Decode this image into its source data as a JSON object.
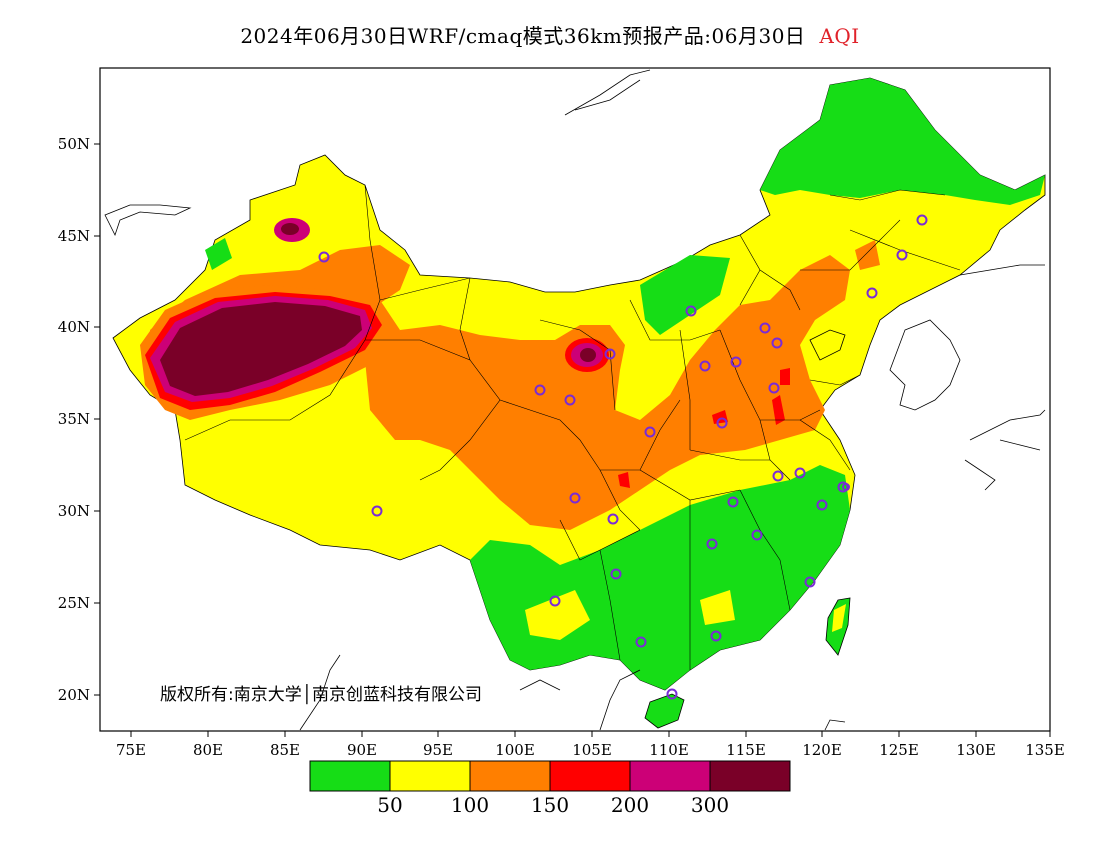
{
  "title": {
    "main": "2024年06月30日WRF/cmaq模式36km预报产品:06月30日",
    "variable": "AQI"
  },
  "copyright": "版权所有:南京大学│南京创蓝科技有限公司",
  "axes": {
    "lon_labels": [
      "75E",
      "80E",
      "85E",
      "90E",
      "95E",
      "100E",
      "105E",
      "110E",
      "115E",
      "120E",
      "125E",
      "130E",
      "135E"
    ],
    "lat_labels": [
      "50N",
      "45N",
      "40N",
      "35N",
      "30N",
      "25N",
      "20N"
    ]
  },
  "legend": {
    "colors": [
      "#16dd16",
      "#ffff00",
      "#ff7f00",
      "#ff0000",
      "#cc0077",
      "#7a0028"
    ],
    "labels": [
      "50",
      "100",
      "150",
      "200",
      "300"
    ]
  },
  "colors": {
    "good": "#16dd16",
    "moderate": "#ffff00",
    "sensitive": "#ff7f00",
    "unhealthy": "#ff0000",
    "very_unhealthy": "#cc0077",
    "hazardous": "#7a0028",
    "station": "#7a2bd6"
  },
  "stations_count": 32
}
